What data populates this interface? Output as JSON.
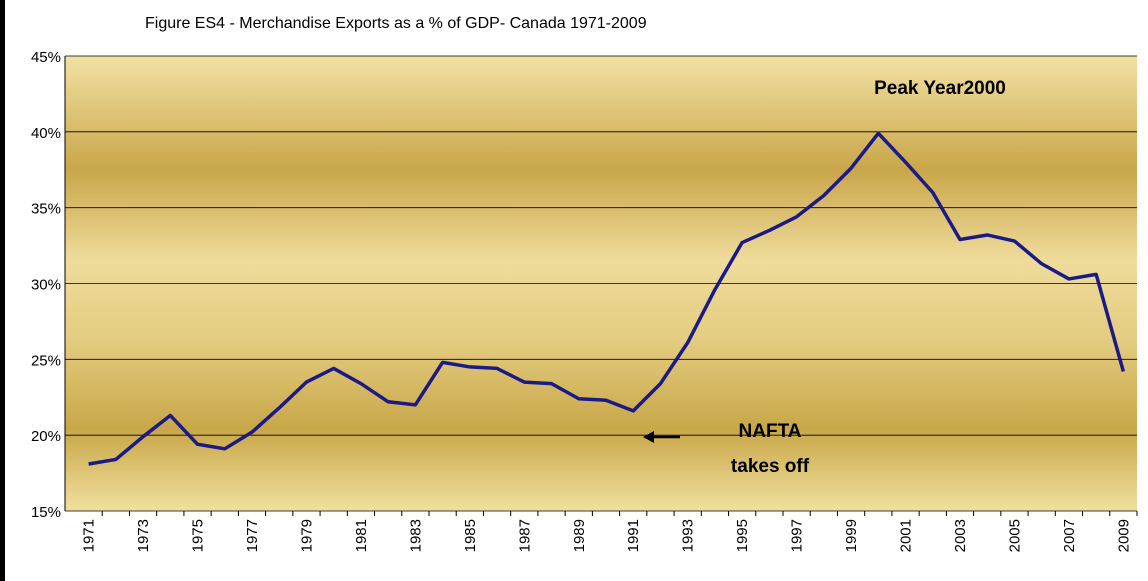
{
  "chart_data": {
    "type": "line",
    "title": "Figure ES4 - Merchandise Exports as a % of GDP- Canada 1971-2009",
    "categories": [
      "1971",
      null,
      "1973",
      null,
      "1975",
      null,
      "1977",
      null,
      "1979",
      null,
      "1981",
      null,
      "1983",
      null,
      "1985",
      null,
      "1987",
      null,
      "1989",
      null,
      "1991",
      null,
      "1993",
      null,
      "1995",
      null,
      "1997",
      null,
      "1999",
      null,
      "2001",
      null,
      "2003",
      null,
      "2005",
      null,
      "2007",
      null,
      "2009"
    ],
    "series": [
      {
        "name": "Merchandise Exports as a % of GDP",
        "color": "#1c1a85",
        "values": [
          18.1,
          18.4,
          19.9,
          21.3,
          19.4,
          19.1,
          20.2,
          21.8,
          23.5,
          24.4,
          23.4,
          22.2,
          22.0,
          24.8,
          24.5,
          24.4,
          23.5,
          23.4,
          22.4,
          22.3,
          21.6,
          23.4,
          26.1,
          29.6,
          32.7,
          33.5,
          34.4,
          35.8,
          37.6,
          39.9,
          38.0,
          36.0,
          32.9,
          33.2,
          32.8,
          31.3,
          30.3,
          30.6,
          24.2
        ]
      }
    ],
    "ylim": [
      15,
      45
    ],
    "yticks": [
      {
        "value": 15,
        "label": "15%"
      },
      {
        "value": 20,
        "label": "20%"
      },
      {
        "value": 25,
        "label": "25%"
      },
      {
        "value": 30,
        "label": "30%"
      },
      {
        "value": 35,
        "label": "35%"
      },
      {
        "value": 40,
        "label": "40%"
      },
      {
        "value": 45,
        "label": "45%"
      }
    ],
    "grid": true,
    "annotations": [
      "Peak Year2000",
      "NAFTA",
      "takes off"
    ]
  }
}
